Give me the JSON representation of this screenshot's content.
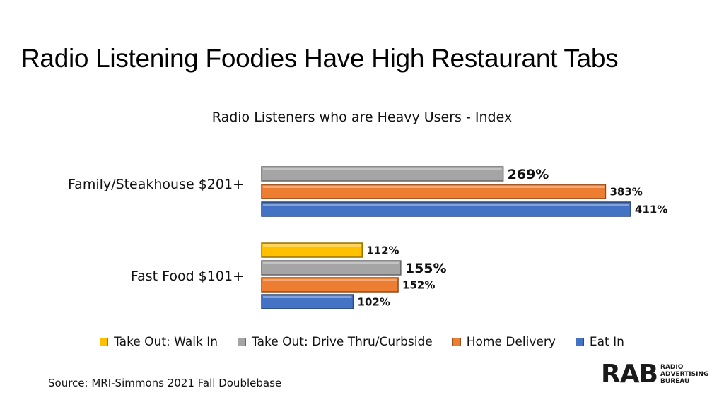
{
  "slide": {
    "title": "Radio Listening Foodies Have High Restaurant Tabs",
    "source": "Source: MRI-Simmons 2021 Fall Doublebase",
    "logo": "RAB RADIO ADVERTISING BUREAU"
  },
  "chart_data": {
    "type": "bar",
    "orientation": "horizontal",
    "subtitle": "Radio Listeners who are Heavy Users - Index",
    "categories": [
      "Family/Steakhouse $201+",
      "Fast Food $101+"
    ],
    "series": [
      {
        "name": "Take Out: Walk In",
        "color": "#FFC000",
        "values": [
          null,
          112
        ]
      },
      {
        "name": "Take Out: Drive Thru/Curbside",
        "color": "#A5A5A5",
        "values": [
          269,
          155
        ]
      },
      {
        "name": "Home Delivery",
        "color": "#ED7D31",
        "values": [
          383,
          152
        ]
      },
      {
        "name": "Eat In",
        "color": "#4472C4",
        "values": [
          411,
          102
        ]
      }
    ],
    "value_labels": [
      [
        null,
        "112%"
      ],
      [
        "269%",
        "155%"
      ],
      [
        "383%",
        "152%"
      ],
      [
        "411%",
        "102%"
      ]
    ],
    "value_suffix": "%",
    "legend_position": "bottom",
    "grid": false
  }
}
